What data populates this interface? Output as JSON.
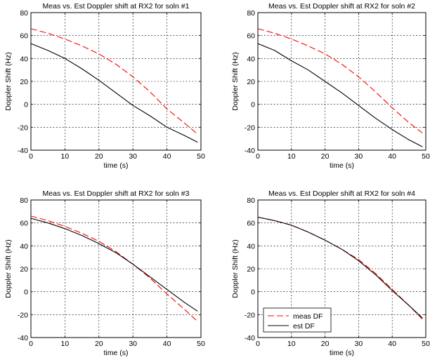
{
  "chart_data": [
    {
      "type": "line",
      "title": "Meas vs. Est Doppler shift at RX2 for soln #1",
      "xlabel": "time (s)",
      "ylabel": "Doppler Shift (Hz)",
      "xlim": [
        0,
        50
      ],
      "ylim": [
        -40,
        80
      ],
      "xticks": [
        0,
        10,
        20,
        30,
        40,
        50
      ],
      "yticks": [
        -40,
        -20,
        0,
        20,
        40,
        60,
        80
      ],
      "grid": true,
      "series": [
        {
          "style": "dashed",
          "color": "#ff0000",
          "x": [
            0,
            5,
            10,
            15,
            20,
            25,
            30,
            35,
            40,
            45,
            49
          ],
          "y": [
            66,
            62,
            57,
            51,
            44,
            35,
            24,
            11,
            -4,
            -16,
            -26
          ]
        },
        {
          "style": "solid",
          "color": "#000000",
          "x": [
            0,
            5,
            10,
            15,
            20,
            25,
            30,
            35,
            40,
            45,
            49
          ],
          "y": [
            53,
            47,
            40,
            31,
            21,
            10,
            -1,
            -10,
            -20,
            -27,
            -33
          ]
        }
      ]
    },
    {
      "type": "line",
      "title": "Meas vs. Est Doppler shift at RX2 for soln #2",
      "xlabel": "time (s)",
      "ylabel": "Doppler Shift (Hz)",
      "xlim": [
        0,
        50
      ],
      "ylim": [
        -40,
        80
      ],
      "xticks": [
        0,
        10,
        20,
        30,
        40,
        50
      ],
      "yticks": [
        -40,
        -20,
        0,
        20,
        40,
        60,
        80
      ],
      "grid": true,
      "series": [
        {
          "style": "dashed",
          "color": "#ff0000",
          "x": [
            0,
            5,
            10,
            15,
            20,
            25,
            30,
            35,
            40,
            45,
            49
          ],
          "y": [
            66,
            62,
            57,
            51,
            44,
            35,
            24,
            11,
            -3,
            -16,
            -25
          ]
        },
        {
          "style": "solid",
          "color": "#000000",
          "x": [
            0,
            5,
            10,
            15,
            20,
            25,
            30,
            35,
            40,
            45,
            49
          ],
          "y": [
            53,
            47,
            38,
            30,
            20,
            10,
            -1,
            -12,
            -22,
            -31,
            -37
          ]
        }
      ]
    },
    {
      "type": "line",
      "title": "Meas vs. Est Doppler shift at RX2 for soln #3",
      "xlabel": "time (s)",
      "ylabel": "Doppler Shift (Hz)",
      "xlim": [
        0,
        50
      ],
      "ylim": [
        -40,
        80
      ],
      "xticks": [
        0,
        10,
        20,
        30,
        40,
        50
      ],
      "yticks": [
        -40,
        -20,
        0,
        20,
        40,
        60,
        80
      ],
      "grid": true,
      "series": [
        {
          "style": "dashed",
          "color": "#ff0000",
          "x": [
            0,
            5,
            10,
            15,
            20,
            25,
            30,
            35,
            40,
            45,
            49
          ],
          "y": [
            66,
            62,
            57,
            51,
            44,
            35,
            24,
            12,
            -2,
            -15,
            -26
          ]
        },
        {
          "style": "solid",
          "color": "#000000",
          "x": [
            0,
            5,
            10,
            15,
            20,
            25,
            30,
            35,
            40,
            45,
            49
          ],
          "y": [
            64,
            60,
            55,
            49,
            42,
            34,
            24,
            13,
            2,
            -9,
            -17
          ]
        }
      ]
    },
    {
      "type": "line",
      "title": "Meas vs. Est Doppler shift at RX2 for soln #4",
      "xlabel": "time (s)",
      "ylabel": "Doppler Shift (Hz)",
      "xlim": [
        0,
        50
      ],
      "ylim": [
        -40,
        80
      ],
      "xticks": [
        0,
        10,
        20,
        30,
        40,
        50
      ],
      "yticks": [
        -40,
        -20,
        0,
        20,
        40,
        60,
        80
      ],
      "grid": true,
      "legend": {
        "position": "bottom-left",
        "entries": [
          "meas DF",
          "est DF"
        ]
      },
      "series": [
        {
          "name": "meas DF",
          "style": "dashed",
          "color": "#ff0000",
          "x": [
            0,
            5,
            10,
            15,
            20,
            25,
            30,
            35,
            40,
            45,
            49
          ],
          "y": [
            65,
            62,
            58,
            52,
            45,
            37,
            28,
            16,
            2,
            -12,
            -24
          ]
        },
        {
          "name": "est DF",
          "style": "solid",
          "color": "#000000",
          "x": [
            0,
            5,
            10,
            15,
            20,
            25,
            30,
            35,
            40,
            45,
            49
          ],
          "y": [
            65,
            62,
            58,
            52,
            45,
            37,
            27,
            15,
            1,
            -12,
            -23
          ]
        }
      ]
    }
  ]
}
